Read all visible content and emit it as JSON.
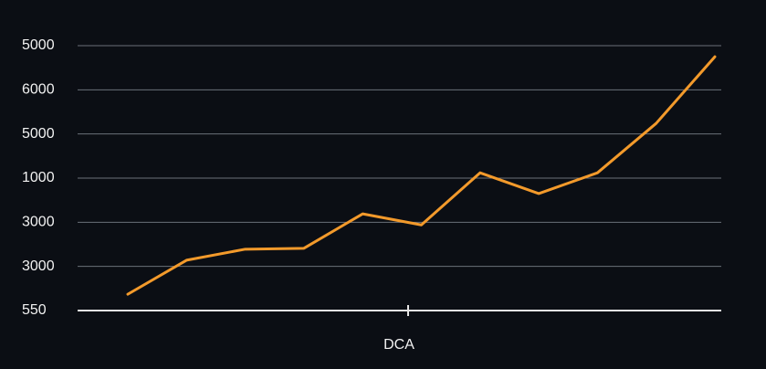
{
  "chart_data": {
    "type": "line",
    "x_label": "DCA",
    "categories": [
      null,
      null,
      null,
      null,
      null,
      null,
      null,
      null,
      null,
      null,
      null
    ],
    "series": [
      {
        "name": null,
        "color": "#f39a2b",
        "values": [
          0.37,
          1.14,
          1.39,
          1.41,
          2.19,
          1.94,
          3.12,
          2.65,
          3.12,
          4.24,
          5.75
        ]
      }
    ],
    "ylim": [
      0,
      6
    ],
    "yticks": [
      {
        "value": 0,
        "label": "550"
      },
      {
        "value": 1,
        "label": "3000"
      },
      {
        "value": 2,
        "label": "3000"
      },
      {
        "value": 3,
        "label": "1000"
      },
      {
        "value": 4,
        "label": "5000"
      },
      {
        "value": 5,
        "label": "6000"
      },
      {
        "value": 6,
        "label": "5000"
      }
    ],
    "grid": true
  }
}
